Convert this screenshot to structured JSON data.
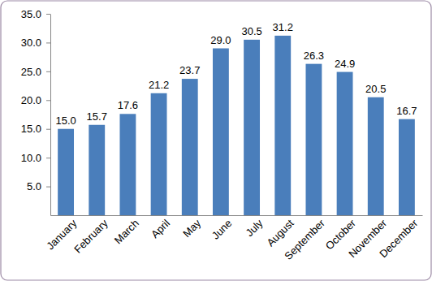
{
  "chart_data": {
    "type": "bar",
    "categories": [
      "January",
      "February",
      "March",
      "April",
      "May",
      "June",
      "July",
      "August",
      "September",
      "October",
      "November",
      "December"
    ],
    "values": [
      15.0,
      15.7,
      17.6,
      21.2,
      23.7,
      29.0,
      30.5,
      31.2,
      26.3,
      24.9,
      20.5,
      16.7
    ],
    "value_labels": [
      "15.0",
      "15.7",
      "17.6",
      "21.2",
      "23.7",
      "29.0",
      "30.5",
      "31.2",
      "26.3",
      "24.9",
      "20.5",
      "16.7"
    ],
    "color": "#4a7ebb",
    "ylim": [
      0,
      35
    ],
    "yticks": [
      {
        "value": 5,
        "label": "5.0"
      },
      {
        "value": 10,
        "label": "10.0"
      },
      {
        "value": 15,
        "label": "15.0"
      },
      {
        "value": 20,
        "label": "20.0"
      },
      {
        "value": 25,
        "label": "25.0"
      },
      {
        "value": 30,
        "label": "30.0"
      },
      {
        "value": 35,
        "label": "35.0"
      }
    ],
    "grid": false,
    "data_labels": true
  }
}
